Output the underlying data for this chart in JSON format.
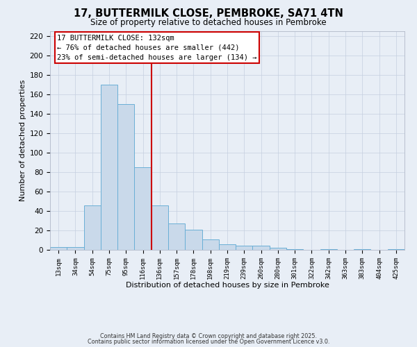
{
  "title": "17, BUTTERMILK CLOSE, PEMBROKE, SA71 4TN",
  "subtitle": "Size of property relative to detached houses in Pembroke",
  "xlabel": "Distribution of detached houses by size in Pembroke",
  "ylabel": "Number of detached properties",
  "bar_labels": [
    "13sqm",
    "34sqm",
    "54sqm",
    "75sqm",
    "95sqm",
    "116sqm",
    "136sqm",
    "157sqm",
    "178sqm",
    "198sqm",
    "219sqm",
    "239sqm",
    "260sqm",
    "280sqm",
    "301sqm",
    "322sqm",
    "342sqm",
    "363sqm",
    "383sqm",
    "404sqm",
    "425sqm"
  ],
  "bar_values": [
    3,
    3,
    46,
    170,
    150,
    85,
    46,
    27,
    21,
    11,
    6,
    4,
    4,
    2,
    1,
    0,
    1,
    0,
    1,
    0,
    1
  ],
  "bar_color": "#c9d9ea",
  "bar_edge_color": "#6aafd6",
  "vline_x": 6,
  "vline_color": "#cc0000",
  "annotation_title": "17 BUTTERMILK CLOSE: 132sqm",
  "annotation_line1": "← 76% of detached houses are smaller (442)",
  "annotation_line2": "23% of semi-detached houses are larger (134) →",
  "annotation_box_facecolor": "#ffffff",
  "annotation_box_edgecolor": "#cc0000",
  "ylim": [
    0,
    225
  ],
  "yticks": [
    0,
    20,
    40,
    60,
    80,
    100,
    120,
    140,
    160,
    180,
    200,
    220
  ],
  "grid_color": "#c5cfe0",
  "background_color": "#e8eef6",
  "footer_line1": "Contains HM Land Registry data © Crown copyright and database right 2025.",
  "footer_line2": "Contains public sector information licensed under the Open Government Licence v3.0."
}
